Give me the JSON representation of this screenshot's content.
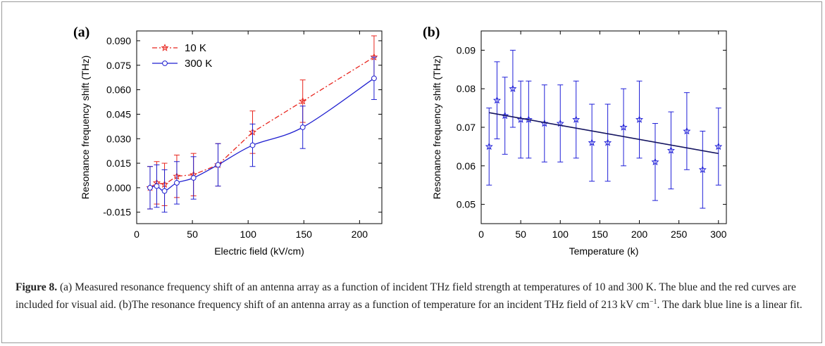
{
  "figure": {
    "caption_label": "Figure 8.",
    "caption_text_1": " (a) Measured resonance frequency shift of an antenna array as a function of incident THz field strength at temperatures of 10 and 300 K. The blue and the red curves are included for visual aid. (b)The resonance frequency shift of an antenna array as a function of temperature for an incident THz field of 213 kV cm",
    "caption_sup": "−1",
    "caption_text_2": ". The dark blue line is a linear fit."
  },
  "chart_data": [
    {
      "type": "line",
      "panel_label": "(a)",
      "xlabel": "Electric field (kV/cm)",
      "ylabel": "Resonance frequency shift (THz)",
      "xlim": [
        0,
        220
      ],
      "ylim": [
        -0.022,
        0.096
      ],
      "xticks": [
        "0",
        "50",
        "100",
        "150",
        "200"
      ],
      "xtick_values": [
        0,
        50,
        100,
        150,
        200
      ],
      "yticks": [
        "-0.015",
        "0.000",
        "0.015",
        "0.030",
        "0.045",
        "0.060",
        "0.075",
        "0.090"
      ],
      "ytick_values": [
        -0.015,
        0,
        0.015,
        0.03,
        0.045,
        0.06,
        0.075,
        0.09
      ],
      "legend_position": "top-left",
      "series": [
        {
          "name": "10 K",
          "color": "#e8251e",
          "line_style": "dash-dot",
          "marker": "star",
          "x": [
            12,
            18,
            25,
            36,
            51,
            73,
            104,
            149,
            213
          ],
          "y": [
            0.0,
            0.003,
            0.002,
            0.007,
            0.008,
            0.014,
            0.034,
            0.053,
            0.08
          ],
          "err": [
            0.013,
            0.013,
            0.013,
            0.013,
            0.013,
            0.013,
            0.013,
            0.013,
            0.013
          ]
        },
        {
          "name": "300 K",
          "color": "#1f1fd0",
          "line_style": "solid",
          "marker": "circle",
          "x": [
            12,
            18,
            25,
            36,
            51,
            73,
            104,
            149,
            213
          ],
          "y": [
            0.0,
            0.001,
            -0.002,
            0.003,
            0.006,
            0.014,
            0.026,
            0.037,
            0.067
          ],
          "err": [
            0.013,
            0.013,
            0.013,
            0.013,
            0.013,
            0.013,
            0.013,
            0.013,
            0.013
          ]
        }
      ]
    },
    {
      "type": "scatter",
      "panel_label": "(b)",
      "xlabel": "Temperature (k)",
      "ylabel": "Resonance frequency shift (THz)",
      "xlim": [
        0,
        310
      ],
      "ylim": [
        0.045,
        0.095
      ],
      "xticks": [
        "0",
        "50",
        "100",
        "150",
        "200",
        "250",
        "300"
      ],
      "xtick_values": [
        0,
        50,
        100,
        150,
        200,
        250,
        300
      ],
      "yticks": [
        "0.05",
        "0.06",
        "0.07",
        "0.08",
        "0.09"
      ],
      "ytick_values": [
        0.05,
        0.06,
        0.07,
        0.08,
        0.09
      ],
      "series": [
        {
          "color": "#2020d8",
          "marker": "star",
          "x": [
            10,
            20,
            30,
            40,
            50,
            60,
            80,
            100,
            120,
            140,
            160,
            180,
            200,
            220,
            240,
            260,
            280,
            300
          ],
          "y": [
            0.065,
            0.077,
            0.073,
            0.08,
            0.072,
            0.072,
            0.071,
            0.071,
            0.072,
            0.066,
            0.066,
            0.07,
            0.072,
            0.061,
            0.064,
            0.069,
            0.059,
            0.065
          ],
          "err": [
            0.01,
            0.01,
            0.01,
            0.01,
            0.01,
            0.01,
            0.01,
            0.01,
            0.01,
            0.01,
            0.01,
            0.01,
            0.01,
            0.01,
            0.01,
            0.01,
            0.01,
            0.01
          ]
        }
      ],
      "fit": {
        "color": "#141460",
        "x": [
          10,
          300
        ],
        "y": [
          0.0738,
          0.0632
        ]
      }
    }
  ]
}
